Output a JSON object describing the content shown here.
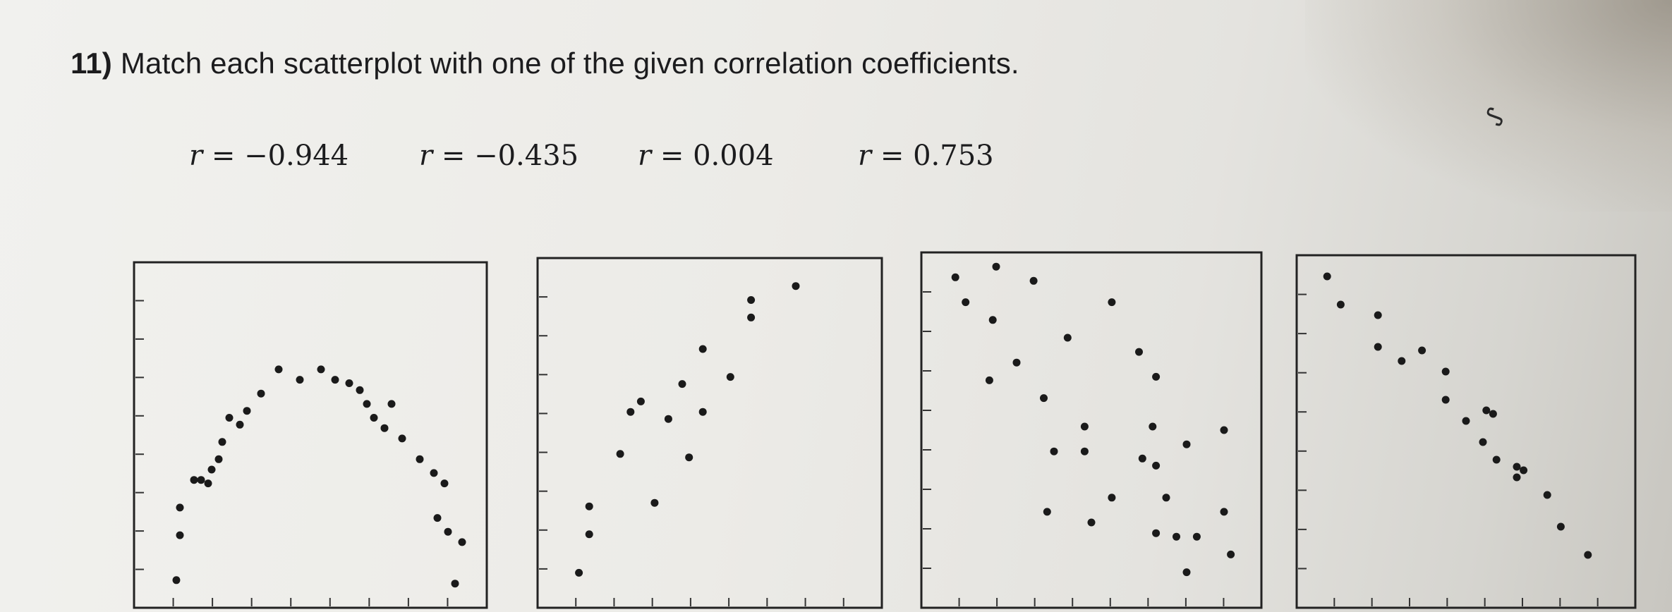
{
  "question": {
    "number": "11)",
    "text": "Match each scatterplot with one of the given correlation coefficients."
  },
  "coefficients": [
    {
      "symbol": "r",
      "sign": "= ",
      "value": "−0.944"
    },
    {
      "symbol": "r",
      "sign": "= ",
      "value": "−0.435"
    },
    {
      "symbol": "r",
      "sign": "= ",
      "value": "0.004"
    },
    {
      "symbol": "r",
      "sign": "= ",
      "value": "0.753"
    }
  ],
  "margin_mark": "ᔑ",
  "chart_data": [
    {
      "type": "scatter",
      "xlim": [
        0,
        10
      ],
      "ylim": [
        0,
        10
      ],
      "points": [
        [
          1.2,
          0.8
        ],
        [
          1.3,
          2.1
        ],
        [
          1.3,
          2.9
        ],
        [
          1.7,
          3.7
        ],
        [
          1.9,
          3.7
        ],
        [
          2.1,
          3.6
        ],
        [
          2.2,
          4.0
        ],
        [
          2.4,
          4.3
        ],
        [
          2.5,
          4.8
        ],
        [
          2.7,
          5.5
        ],
        [
          3.0,
          5.3
        ],
        [
          3.2,
          5.7
        ],
        [
          3.6,
          6.2
        ],
        [
          4.1,
          6.9
        ],
        [
          4.7,
          6.6
        ],
        [
          5.3,
          6.9
        ],
        [
          5.7,
          6.6
        ],
        [
          6.1,
          6.5
        ],
        [
          6.4,
          6.3
        ],
        [
          6.6,
          5.9
        ],
        [
          6.8,
          5.5
        ],
        [
          7.1,
          5.2
        ],
        [
          7.3,
          5.9
        ],
        [
          7.6,
          4.9
        ],
        [
          8.1,
          4.3
        ],
        [
          8.5,
          3.9
        ],
        [
          8.8,
          3.6
        ],
        [
          8.6,
          2.6
        ],
        [
          8.9,
          2.2
        ],
        [
          9.3,
          1.9
        ],
        [
          9.1,
          0.7
        ]
      ]
    },
    {
      "type": "scatter",
      "xlim": [
        0,
        10
      ],
      "ylim": [
        0,
        10
      ],
      "points": [
        [
          1.2,
          1.0
        ],
        [
          1.5,
          2.1
        ],
        [
          1.5,
          2.9
        ],
        [
          2.4,
          4.4
        ],
        [
          2.7,
          5.6
        ],
        [
          3.0,
          5.9
        ],
        [
          3.4,
          3.0
        ],
        [
          3.8,
          5.4
        ],
        [
          4.2,
          6.4
        ],
        [
          4.4,
          4.3
        ],
        [
          4.8,
          5.6
        ],
        [
          4.8,
          7.4
        ],
        [
          5.6,
          6.6
        ],
        [
          6.2,
          8.3
        ],
        [
          6.2,
          8.8
        ],
        [
          7.5,
          9.2
        ]
      ]
    },
    {
      "type": "scatter",
      "xlim": [
        0,
        10
      ],
      "ylim": [
        0,
        10
      ],
      "points": [
        [
          1.0,
          9.3
        ],
        [
          1.3,
          8.6
        ],
        [
          2.2,
          9.6
        ],
        [
          2.1,
          8.1
        ],
        [
          2.0,
          6.4
        ],
        [
          2.8,
          6.9
        ],
        [
          3.3,
          9.2
        ],
        [
          3.6,
          5.9
        ],
        [
          3.9,
          4.4
        ],
        [
          3.7,
          2.7
        ],
        [
          4.3,
          7.6
        ],
        [
          4.8,
          4.4
        ],
        [
          4.8,
          5.1
        ],
        [
          5.0,
          2.4
        ],
        [
          5.6,
          8.6
        ],
        [
          5.6,
          3.1
        ],
        [
          6.4,
          7.2
        ],
        [
          6.5,
          4.2
        ],
        [
          6.8,
          5.1
        ],
        [
          6.9,
          4.0
        ],
        [
          6.9,
          6.5
        ],
        [
          7.2,
          3.1
        ],
        [
          6.9,
          2.1
        ],
        [
          7.5,
          2.0
        ],
        [
          7.8,
          4.6
        ],
        [
          8.1,
          2.0
        ],
        [
          7.8,
          1.0
        ],
        [
          8.9,
          5.0
        ],
        [
          8.9,
          2.7
        ],
        [
          9.1,
          1.5
        ]
      ]
    },
    {
      "type": "scatter",
      "xlim": [
        0,
        10
      ],
      "ylim": [
        0,
        10
      ],
      "points": [
        [
          0.9,
          9.4
        ],
        [
          1.3,
          8.6
        ],
        [
          2.4,
          8.3
        ],
        [
          2.4,
          7.4
        ],
        [
          3.1,
          7.0
        ],
        [
          3.7,
          7.3
        ],
        [
          4.4,
          6.7
        ],
        [
          4.4,
          5.9
        ],
        [
          5.0,
          5.3
        ],
        [
          5.6,
          5.6
        ],
        [
          5.5,
          4.7
        ],
        [
          5.8,
          5.5
        ],
        [
          5.9,
          4.2
        ],
        [
          6.5,
          4.0
        ],
        [
          6.5,
          3.7
        ],
        [
          6.7,
          3.9
        ],
        [
          7.4,
          3.2
        ],
        [
          7.8,
          2.3
        ],
        [
          8.6,
          1.5
        ]
      ]
    }
  ]
}
